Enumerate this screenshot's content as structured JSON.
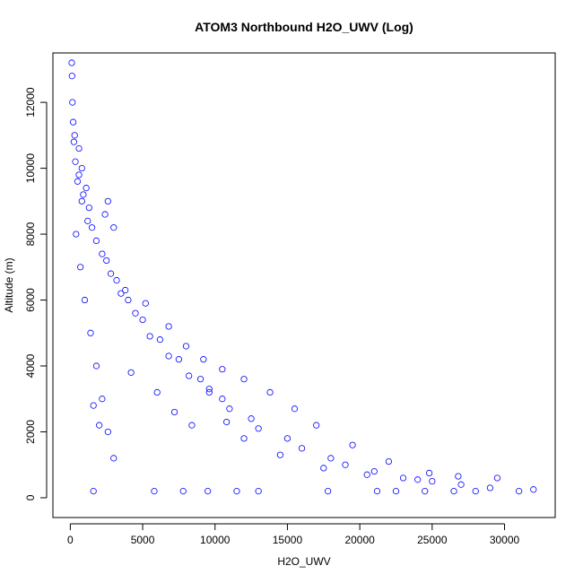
{
  "chart_data": {
    "type": "scatter",
    "title": "ATOM3 Northbound H2O_UWV (Log)",
    "xlabel": "H2O_UWV",
    "ylabel": "Altitude (m)",
    "xlim": [
      -1200,
      33500
    ],
    "ylim": [
      -600,
      13500
    ],
    "xticks": [
      0,
      5000,
      10000,
      15000,
      20000,
      25000,
      30000
    ],
    "yticks": [
      0,
      2000,
      4000,
      6000,
      8000,
      10000,
      12000
    ],
    "marker": "open-circle",
    "series_color": "#0000ff",
    "series": [
      {
        "points": [
          [
            100,
            13200
          ],
          [
            120,
            12800
          ],
          [
            150,
            12000
          ],
          [
            200,
            11400
          ],
          [
            250,
            10800
          ],
          [
            350,
            10200
          ],
          [
            500,
            9600
          ],
          [
            800,
            9000
          ],
          [
            1200,
            8400
          ],
          [
            1800,
            7800
          ],
          [
            2500,
            7200
          ],
          [
            3200,
            6600
          ],
          [
            4000,
            6000
          ],
          [
            5000,
            5400
          ],
          [
            6200,
            4800
          ],
          [
            7500,
            4200
          ],
          [
            9000,
            3600
          ],
          [
            10500,
            3000
          ],
          [
            12500,
            2400
          ],
          [
            15000,
            1800
          ],
          [
            18000,
            1200
          ],
          [
            21000,
            800
          ],
          [
            25000,
            500
          ],
          [
            29000,
            300
          ],
          [
            32000,
            250
          ],
          [
            300,
            11000
          ],
          [
            600,
            9800
          ],
          [
            900,
            9200
          ],
          [
            1500,
            8200
          ],
          [
            2200,
            7400
          ],
          [
            2800,
            6800
          ],
          [
            3500,
            6200
          ],
          [
            4500,
            5600
          ],
          [
            5500,
            4900
          ],
          [
            6800,
            4300
          ],
          [
            8200,
            3700
          ],
          [
            9600,
            3200
          ],
          [
            11000,
            2700
          ],
          [
            13000,
            2100
          ],
          [
            16000,
            1500
          ],
          [
            19000,
            1000
          ],
          [
            23000,
            600
          ],
          [
            27000,
            400
          ],
          [
            31000,
            200
          ],
          [
            400,
            8000
          ],
          [
            700,
            7000
          ],
          [
            1000,
            6000
          ],
          [
            1400,
            5000
          ],
          [
            1800,
            4000
          ],
          [
            2200,
            3000
          ],
          [
            2600,
            2000
          ],
          [
            3000,
            1200
          ],
          [
            1600,
            200
          ],
          [
            5800,
            200
          ],
          [
            7800,
            200
          ],
          [
            9500,
            200
          ],
          [
            11500,
            200
          ],
          [
            13000,
            200
          ],
          [
            17800,
            200
          ],
          [
            21200,
            200
          ],
          [
            22500,
            200
          ],
          [
            24500,
            200
          ],
          [
            26500,
            200
          ],
          [
            28000,
            200
          ],
          [
            1600,
            2800
          ],
          [
            2000,
            2200
          ],
          [
            4200,
            3800
          ],
          [
            6000,
            3200
          ],
          [
            7200,
            2600
          ],
          [
            8400,
            2200
          ],
          [
            9600,
            3300
          ],
          [
            10800,
            2300
          ],
          [
            12000,
            1800
          ],
          [
            14500,
            1300
          ],
          [
            17500,
            900
          ],
          [
            20500,
            700
          ],
          [
            24000,
            550
          ],
          [
            26800,
            650
          ],
          [
            29500,
            600
          ],
          [
            3800,
            6300
          ],
          [
            5200,
            5900
          ],
          [
            6800,
            5200
          ],
          [
            8000,
            4600
          ],
          [
            9200,
            4200
          ],
          [
            10500,
            3900
          ],
          [
            12000,
            3600
          ],
          [
            13800,
            3200
          ],
          [
            15500,
            2700
          ],
          [
            17000,
            2200
          ],
          [
            19500,
            1600
          ],
          [
            22000,
            1100
          ],
          [
            24800,
            750
          ],
          [
            2600,
            9000
          ],
          [
            2400,
            8600
          ],
          [
            3000,
            8200
          ],
          [
            600,
            10600
          ],
          [
            800,
            10000
          ],
          [
            1100,
            9400
          ],
          [
            1300,
            8800
          ]
        ]
      }
    ]
  }
}
